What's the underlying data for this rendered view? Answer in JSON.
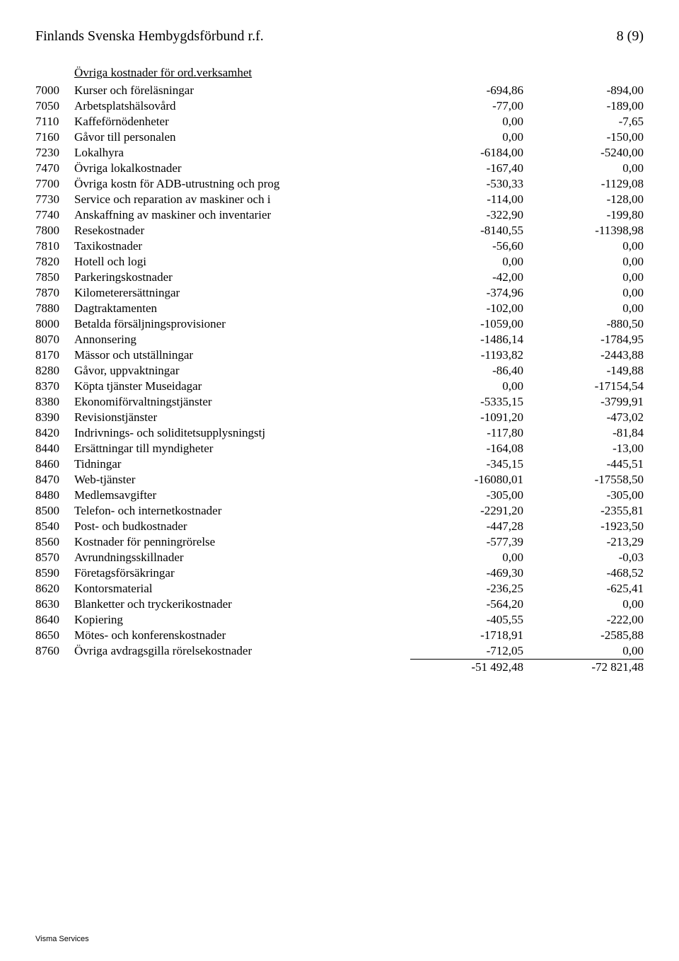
{
  "header": {
    "org": "Finlands Svenska Hembygdsförbund r.f.",
    "page": "8 (9)"
  },
  "section_title": "Övriga kostnader för ord.verksamhet",
  "rows": [
    {
      "code": "7000",
      "label": "Kurser och föreläsningar",
      "c1": "-694,86",
      "c2": "-894,00"
    },
    {
      "code": "7050",
      "label": "Arbetsplatshälsovård",
      "c1": "-77,00",
      "c2": "-189,00"
    },
    {
      "code": "7110",
      "label": "Kaffeförnödenheter",
      "c1": "0,00",
      "c2": "-7,65"
    },
    {
      "code": "7160",
      "label": "Gåvor till personalen",
      "c1": "0,00",
      "c2": "-150,00"
    },
    {
      "code": "7230",
      "label": "Lokalhyra",
      "c1": "-6184,00",
      "c2": "-5240,00"
    },
    {
      "code": "7470",
      "label": "Övriga lokalkostnader",
      "c1": "-167,40",
      "c2": "0,00"
    },
    {
      "code": "7700",
      "label": "Övriga kostn för ADB-utrustning och prog",
      "c1": "-530,33",
      "c2": "-1129,08"
    },
    {
      "code": "7730",
      "label": "Service och reparation av maskiner och i",
      "c1": "-114,00",
      "c2": "-128,00"
    },
    {
      "code": "7740",
      "label": "Anskaffning av maskiner och inventarier",
      "c1": "-322,90",
      "c2": "-199,80"
    },
    {
      "code": "7800",
      "label": "Resekostnader",
      "c1": "-8140,55",
      "c2": "-11398,98"
    },
    {
      "code": "7810",
      "label": "Taxikostnader",
      "c1": "-56,60",
      "c2": "0,00"
    },
    {
      "code": "7820",
      "label": "Hotell och logi",
      "c1": "0,00",
      "c2": "0,00"
    },
    {
      "code": "7850",
      "label": "Parkeringskostnader",
      "c1": "-42,00",
      "c2": "0,00"
    },
    {
      "code": "7870",
      "label": "Kilometerersättningar",
      "c1": "-374,96",
      "c2": "0,00"
    },
    {
      "code": "7880",
      "label": "Dagtraktamenten",
      "c1": "-102,00",
      "c2": "0,00"
    },
    {
      "code": "8000",
      "label": "Betalda försäljningsprovisioner",
      "c1": "-1059,00",
      "c2": "-880,50"
    },
    {
      "code": "8070",
      "label": "Annonsering",
      "c1": "-1486,14",
      "c2": "-1784,95"
    },
    {
      "code": "8170",
      "label": "Mässor och utställningar",
      "c1": "-1193,82",
      "c2": "-2443,88"
    },
    {
      "code": "8280",
      "label": "Gåvor, uppvaktningar",
      "c1": "-86,40",
      "c2": "-149,88"
    },
    {
      "code": "8370",
      "label": "Köpta tjänster Museidagar",
      "c1": "0,00",
      "c2": "-17154,54"
    },
    {
      "code": "8380",
      "label": "Ekonomiförvaltningstjänster",
      "c1": "-5335,15",
      "c2": "-3799,91"
    },
    {
      "code": "8390",
      "label": "Revisionstjänster",
      "c1": "-1091,20",
      "c2": "-473,02"
    },
    {
      "code": "8420",
      "label": "Indrivnings- och soliditetsupplysningstj",
      "c1": "-117,80",
      "c2": "-81,84"
    },
    {
      "code": "8440",
      "label": "Ersättningar till myndigheter",
      "c1": "-164,08",
      "c2": "-13,00"
    },
    {
      "code": "8460",
      "label": "Tidningar",
      "c1": "-345,15",
      "c2": "-445,51"
    },
    {
      "code": "8470",
      "label": "Web-tjänster",
      "c1": "-16080,01",
      "c2": "-17558,50"
    },
    {
      "code": "8480",
      "label": "Medlemsavgifter",
      "c1": "-305,00",
      "c2": "-305,00"
    },
    {
      "code": "8500",
      "label": "Telefon- och internetkostnader",
      "c1": "-2291,20",
      "c2": "-2355,81"
    },
    {
      "code": "8540",
      "label": "Post- och budkostnader",
      "c1": "-447,28",
      "c2": "-1923,50"
    },
    {
      "code": "8560",
      "label": "Kostnader för penningrörelse",
      "c1": "-577,39",
      "c2": "-213,29"
    },
    {
      "code": "8570",
      "label": "Avrundningsskillnader",
      "c1": "0,00",
      "c2": "-0,03"
    },
    {
      "code": "8590",
      "label": "Företagsförsäkringar",
      "c1": "-469,30",
      "c2": "-468,52"
    },
    {
      "code": "8620",
      "label": "Kontorsmaterial",
      "c1": "-236,25",
      "c2": "-625,41"
    },
    {
      "code": "8630",
      "label": "Blanketter och tryckerikostnader",
      "c1": "-564,20",
      "c2": "0,00"
    },
    {
      "code": "8640",
      "label": "Kopiering",
      "c1": "-405,55",
      "c2": "-222,00"
    },
    {
      "code": "8650",
      "label": "Mötes- och konferenskostnader",
      "c1": "-1718,91",
      "c2": "-2585,88"
    },
    {
      "code": "8760",
      "label": "Övriga avdragsgilla rörelsekostnader",
      "c1": "-712,05",
      "c2": "0,00"
    }
  ],
  "totals": {
    "c1": "-51 492,48",
    "c2": "-72 821,48"
  },
  "footer": "Visma Services"
}
